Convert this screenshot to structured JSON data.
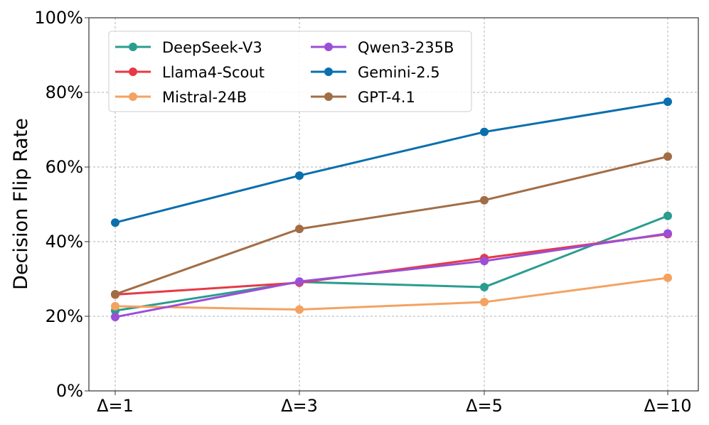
{
  "chart_data": {
    "type": "line",
    "categories": [
      "Δ=1",
      "Δ=3",
      "Δ=5",
      "Δ=10"
    ],
    "ylabel": "Decision Flip Rate",
    "xlabel": "",
    "ylim": [
      0,
      100
    ],
    "y_ticks": [
      "0%",
      "20%",
      "40%",
      "60%",
      "80%",
      "100%"
    ],
    "grid": true,
    "legend": "top-left",
    "series": [
      {
        "name": "DeepSeek-V3",
        "color": "#2a9d8f",
        "values": [
          21.5,
          29.2,
          27.8,
          46.9
        ]
      },
      {
        "name": "Llama4-Scout",
        "color": "#e63946",
        "values": [
          25.8,
          29.0,
          35.6,
          42.0
        ]
      },
      {
        "name": "Mistral-24B",
        "color": "#f4a261",
        "values": [
          22.7,
          21.8,
          23.8,
          30.3
        ]
      },
      {
        "name": "Qwen3-235B",
        "color": "#9b4fd6",
        "values": [
          19.8,
          29.3,
          34.8,
          42.2
        ]
      },
      {
        "name": "Gemini-2.5",
        "color": "#0a6fad",
        "values": [
          45.1,
          57.7,
          69.4,
          77.5
        ]
      },
      {
        "name": "GPT-4.1",
        "color": "#a26d45",
        "values": [
          25.9,
          43.4,
          51.1,
          62.8
        ]
      }
    ]
  }
}
